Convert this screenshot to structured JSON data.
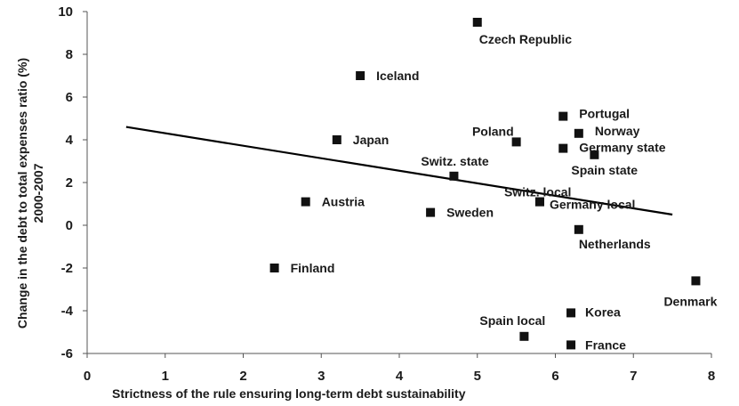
{
  "chart_data": {
    "type": "scatter",
    "title": "",
    "xlabel": "Strictness of the rule ensuring long-term debt sustainability",
    "ylabel_lines": [
      "Change in the debt to total expenses ratio (%)",
      "2000-2007"
    ],
    "xlim": [
      0,
      8
    ],
    "ylim": [
      -6,
      10
    ],
    "x_ticks": [
      0,
      1,
      2,
      3,
      4,
      5,
      6,
      7,
      8
    ],
    "y_ticks": [
      -6,
      -4,
      -2,
      0,
      2,
      4,
      6,
      8,
      10
    ],
    "grid": false,
    "legend": "none",
    "marker_color": "#111111",
    "trendline": {
      "x": [
        0.5,
        7.5
      ],
      "y": [
        4.6,
        0.5
      ]
    },
    "points": [
      {
        "label": "Czech Republic",
        "x": 5.0,
        "y": 9.5
      },
      {
        "label": "Iceland",
        "x": 3.5,
        "y": 7.0
      },
      {
        "label": "Portugal",
        "x": 6.1,
        "y": 5.1
      },
      {
        "label": "Norway",
        "x": 6.3,
        "y": 4.3
      },
      {
        "label": "Poland",
        "x": 5.5,
        "y": 3.9
      },
      {
        "label": "Japan",
        "x": 3.2,
        "y": 4.0
      },
      {
        "label": "Germany state",
        "x": 6.1,
        "y": 3.6
      },
      {
        "label": "Spain state",
        "x": 6.5,
        "y": 3.3
      },
      {
        "label": "Switz. state",
        "x": 4.7,
        "y": 2.3
      },
      {
        "label": "Switz. local",
        "x": 5.8,
        "y": 1.1
      },
      {
        "label": "Germany local",
        "x": 5.8,
        "y": 1.1
      },
      {
        "label": "Austria",
        "x": 2.8,
        "y": 1.1
      },
      {
        "label": "Sweden",
        "x": 4.4,
        "y": 0.6
      },
      {
        "label": "Netherlands",
        "x": 6.3,
        "y": -0.2
      },
      {
        "label": "Finland",
        "x": 2.4,
        "y": -2.0
      },
      {
        "label": "Denmark",
        "x": 7.8,
        "y": -2.6
      },
      {
        "label": "Korea",
        "x": 6.2,
        "y": -4.1
      },
      {
        "label": "Spain local",
        "x": 5.6,
        "y": -5.2
      },
      {
        "label": "France",
        "x": 6.2,
        "y": -5.6
      }
    ]
  }
}
